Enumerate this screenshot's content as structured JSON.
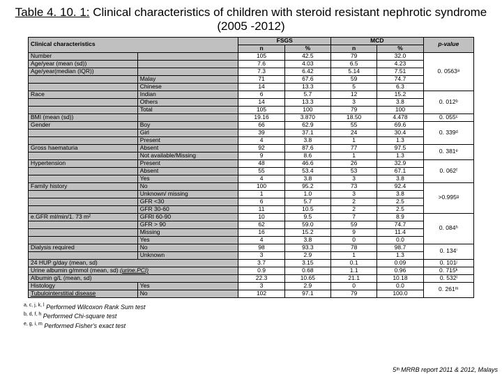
{
  "title_prefix": "Table 4. 10. 1:",
  "title_rest": " Clinical characteristics of children with steroid resistant nephrotic syndrome (2005 -2012)",
  "header": {
    "clinchar": "Clinical characteristics",
    "fsgs": "FSGS",
    "mcd": "MCD",
    "pvalue": "p-value",
    "n": "n",
    "pct": "%"
  },
  "rows": [
    {
      "a": "Number",
      "b": "",
      "n1": "105",
      "p1": "42.5",
      "n2": "79",
      "p2": "32.0",
      "pv": "0. 0563ᵃ",
      "pvspan": 1
    },
    {
      "a": "Age/year (mean (sd))",
      "b": "",
      "n1": "7.6",
      "p1": "4.03",
      "n2": "6.5",
      "p2": "4.23",
      "pv": "",
      "pvspan": 0
    },
    {
      "a": "Age/year(median (IQR))",
      "b": "",
      "n1": "7.3",
      "p1": "6.42",
      "n2": "5.14",
      "p2": "7.51",
      "pv": "",
      "pvspan": 0
    },
    {
      "a": "",
      "b": "Malay",
      "n1": "71",
      "p1": "67.6",
      "n2": "59",
      "p2": "74.7",
      "pv": "",
      "pvspan": 0
    },
    {
      "a": "",
      "b": "Chinese",
      "n1": "14",
      "p1": "13.3",
      "n2": "5",
      "p2": "6.3",
      "pv": "",
      "pvspan": 0
    },
    {
      "a": "Race",
      "b": "Indian",
      "n1": "6",
      "p1": "5.7",
      "n2": "12",
      "p2": "15.2",
      "pv": "0. 012ᵇ",
      "pvspan": 1
    },
    {
      "a": "",
      "b": "Others",
      "n1": "14",
      "p1": "13.3",
      "n2": "3",
      "p2": "3.8",
      "pv": "",
      "pvspan": 0
    },
    {
      "a": "",
      "b": "Total",
      "n1": "105",
      "p1": "100",
      "n2": "79",
      "p2": "100",
      "pv": "",
      "pvspan": 0
    },
    {
      "a": "BMI (mean (sd))",
      "b": "",
      "n1": "19.16",
      "p1": "3.870",
      "n2": "18.50",
      "p2": "4.478",
      "pv": "0. 055ᶜ",
      "pvspan": 1
    },
    {
      "a": "Gender",
      "b": "Boy",
      "n1": "66",
      "p1": "62.9",
      "n2": "55",
      "p2": "69.6",
      "pv": "0. 339ᵈ",
      "pvspan": 2
    },
    {
      "a": "",
      "b": "Girl",
      "n1": "39",
      "p1": "37.1",
      "n2": "24",
      "p2": "30.4",
      "pv": "",
      "pvspan": 0
    },
    {
      "a": "",
      "b": "Present",
      "n1": "4",
      "p1": "3.8",
      "n2": "1",
      "p2": "1.3",
      "pv": "",
      "pvspan": 0
    },
    {
      "a": "Gross haematuria",
      "b": "Absent",
      "n1": "92",
      "p1": "87.6",
      "n2": "77",
      "p2": "97.5",
      "pv": "0. 381ᵉ",
      "pvspan": 1
    },
    {
      "a": "",
      "b": "Not available/Missing",
      "n1": "9",
      "p1": "8.6",
      "n2": "1",
      "p2": "1.3",
      "pv": "",
      "pvspan": 0
    },
    {
      "a": "Hypertension",
      "b": "Present",
      "n1": "48",
      "p1": "46.6",
      "n2": "26",
      "p2": "32.9",
      "pv": "0. 062ᶠ",
      "pvspan": 2
    },
    {
      "a": "",
      "b": "Absent",
      "n1": "55",
      "p1": "53.4",
      "n2": "53",
      "p2": "67.1",
      "pv": "",
      "pvspan": 0
    },
    {
      "a": "",
      "b": "Yes",
      "n1": "4",
      "p1": "3.8",
      "n2": "3",
      "p2": "3.8",
      "pv": "",
      "pvspan": 0
    },
    {
      "a": "Family history",
      "b": "No",
      "n1": "100",
      "p1": "95.2",
      "n2": "73",
      "p2": "92.4",
      "pv": ">0.995ᵍ",
      "pvspan": 1
    },
    {
      "a": "",
      "b": "Unknown/ missing",
      "n1": "1",
      "p1": "1.0",
      "n2": "3",
      "p2": "3.8",
      "pv": "",
      "pvspan": 0
    },
    {
      "a": "",
      "b": "GFR <30",
      "n1": "6",
      "p1": "5.7",
      "n2": "2",
      "p2": "2.5",
      "pv": "",
      "pvspan": 0
    },
    {
      "a": "",
      "b": "GFR 30-60",
      "n1": "11",
      "p1": "10.5",
      "n2": "2",
      "p2": "2.5",
      "pv": "",
      "pvspan": 0
    },
    {
      "a": "e.GFR ml/min/1. 73 m²",
      "b": "GFRI 60-90",
      "n1": "10",
      "p1": "9.5",
      "n2": "7",
      "p2": "8.9",
      "pv": "0. 084ʰ",
      "pvspan": 1
    },
    {
      "a": "",
      "b": "GFR > 90",
      "n1": "62",
      "p1": "59.0",
      "n2": "59",
      "p2": "74.7",
      "pv": "",
      "pvspan": 0
    },
    {
      "a": "",
      "b": "Missing",
      "n1": "16",
      "p1": "15.2",
      "n2": "9",
      "p2": "11.4",
      "pv": "",
      "pvspan": 0
    },
    {
      "a": "",
      "b": "Yes",
      "n1": "4",
      "p1": "3.8",
      "n2": "0",
      "p2": "0.0",
      "pv": "",
      "pvspan": 0
    },
    {
      "a": "Dialysis required",
      "b": "No",
      "n1": "98",
      "p1": "93.3",
      "n2": "78",
      "p2": "98.7",
      "pv": "0. 134ⁱ",
      "pvspan": 1
    },
    {
      "a": "",
      "b": "Unknown",
      "n1": "3",
      "p1": "2.9",
      "n2": "1",
      "p2": "1.3",
      "pv": "",
      "pvspan": 0
    },
    {
      "a": "24 HUP g/day (mean, sd)",
      "b": "",
      "n1": "3.7",
      "p1": "3.15",
      "n2": "0.1",
      "p2": "0.09",
      "pv": "0. 101ʲ",
      "pvspan": 1,
      "colspan": 2
    },
    {
      "a": "Urine albumin g/mmol (mean, sd) (urine.PCI)",
      "b": "",
      "n1": "0.9",
      "p1": "0.68",
      "n2": "1.1",
      "p2": "0.96",
      "pv": "0. 715ᵏ",
      "pvspan": 1,
      "colspan": 2,
      "ital": true
    },
    {
      "a": "Albumin g/L (mean, sd)",
      "b": "",
      "n1": "22.3",
      "p1": "10.65",
      "n2": "21.1",
      "p2": "10.18",
      "pv": "0. 532ˡ",
      "pvspan": 1,
      "colspan": 2
    },
    {
      "a": "Histology",
      "b": "Yes",
      "n1": "3",
      "p1": "2.9",
      "n2": "0",
      "p2": "0.0",
      "pv": "0. 261ᵐ",
      "pvspan": 2
    },
    {
      "a": "Tubulointerstitial disease",
      "b": "No",
      "n1": "102",
      "p1": "97.1",
      "n2": "79",
      "p2": "100.0",
      "pv": "",
      "pvspan": 0,
      "underline": true
    }
  ],
  "footnotes": [
    {
      "sup": "a, c, j, k, l",
      "txt": " Performed Wilcoxon Rank Sum test"
    },
    {
      "sup": "b, d, f, h",
      "txt": " Performed  Chi-square test"
    },
    {
      "sup": "e, g, i, m",
      "txt": " Performed Fisher's exact test"
    }
  ],
  "footer_right": "5ᵗʰ MRRB report 2011 & 2012, Malays"
}
